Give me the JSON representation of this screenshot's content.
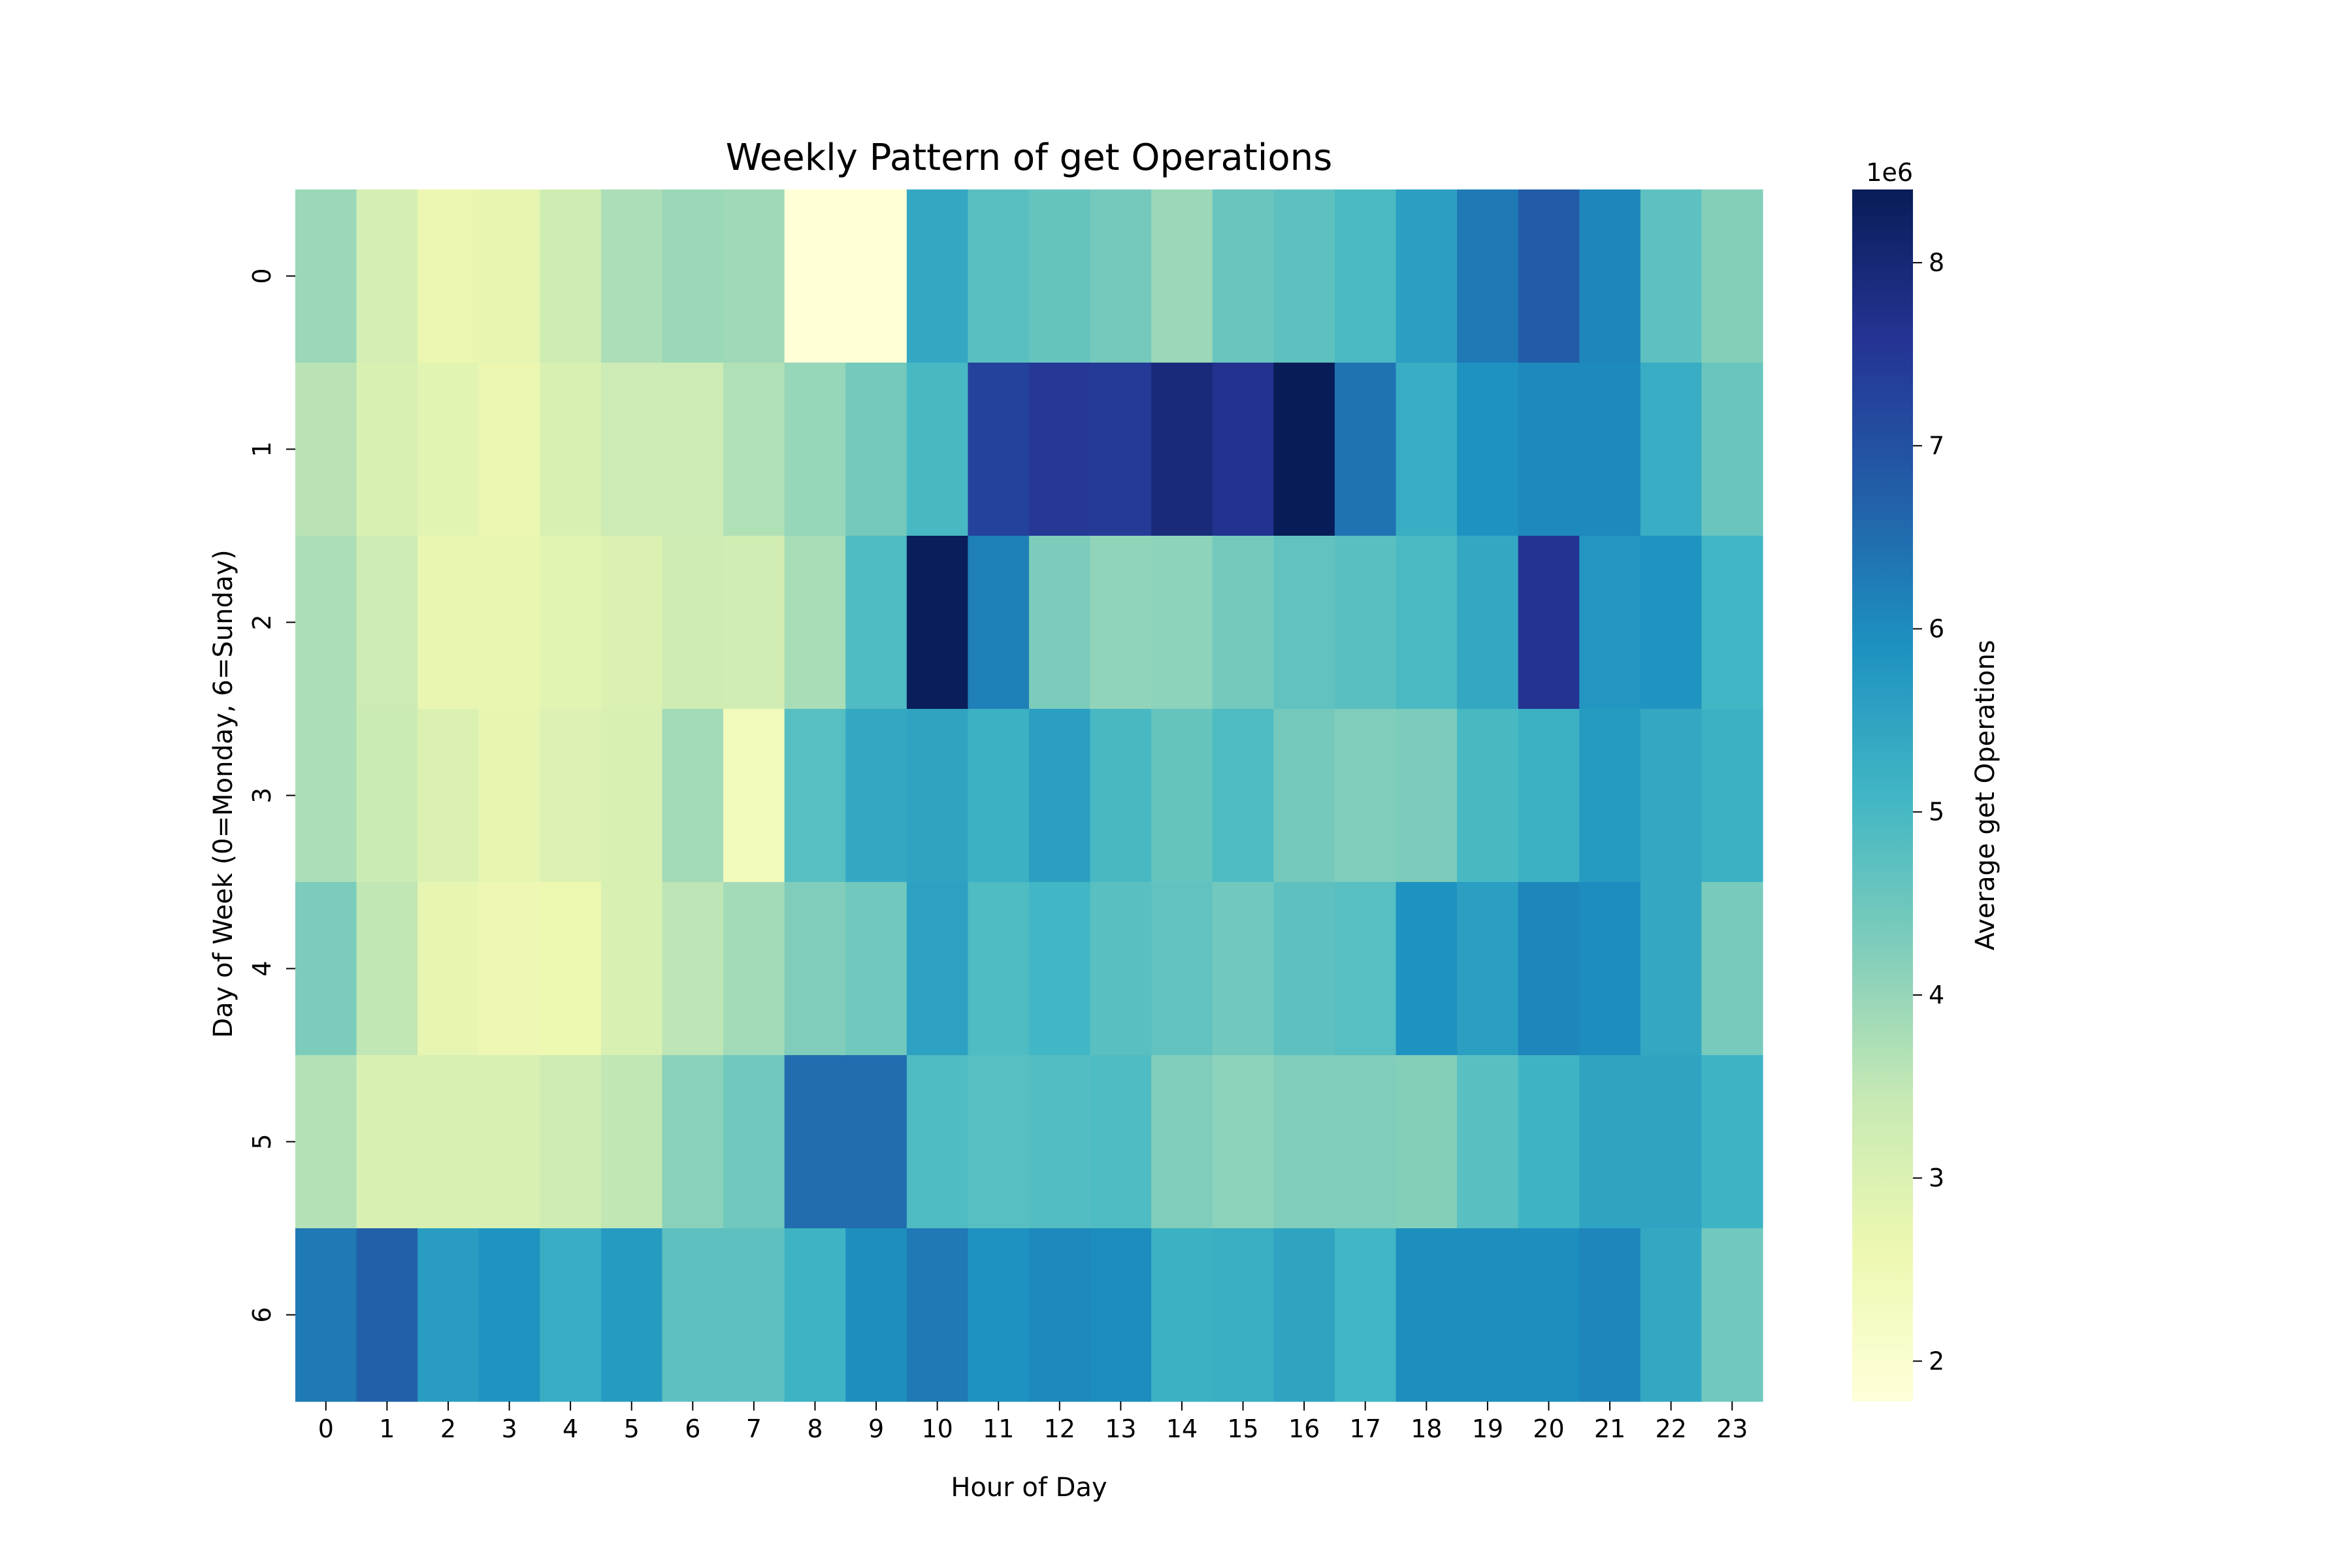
{
  "chart_data": {
    "type": "heatmap",
    "title": "Weekly Pattern of get Operations",
    "xlabel": "Hour of Day",
    "ylabel": "Day of Week (0=Monday, 6=Sunday)",
    "x_categories": [
      "0",
      "1",
      "2",
      "3",
      "4",
      "5",
      "6",
      "7",
      "8",
      "9",
      "10",
      "11",
      "12",
      "13",
      "14",
      "15",
      "16",
      "17",
      "18",
      "19",
      "20",
      "21",
      "22",
      "23"
    ],
    "y_categories": [
      "0",
      "1",
      "2",
      "3",
      "4",
      "5",
      "6"
    ],
    "values": [
      [
        3950000.0,
        3150000.0,
        2650000.0,
        2750000.0,
        3250000.0,
        3750000.0,
        3950000.0,
        3900000.0,
        1800000.0,
        1800000.0,
        5400000.0,
        4750000.0,
        4600000.0,
        4400000.0,
        3950000.0,
        4550000.0,
        4700000.0,
        4950000.0,
        5600000.0,
        6300000.0,
        6800000.0,
        6100000.0,
        4700000.0,
        4200000.0
      ],
      [
        3600000.0,
        3050000.0,
        2850000.0,
        2650000.0,
        3050000.0,
        3300000.0,
        3300000.0,
        3700000.0,
        4000000.0,
        4400000.0,
        5000000.0,
        7300000.0,
        7500000.0,
        7450000.0,
        7950000.0,
        7650000.0,
        8400000.0,
        6400000.0,
        5300000.0,
        5900000.0,
        6050000.0,
        6050000.0,
        5300000.0,
        4550000.0
      ],
      [
        3750000.0,
        3300000.0,
        2700000.0,
        2700000.0,
        2850000.0,
        3000000.0,
        3250000.0,
        3200000.0,
        3800000.0,
        4900000.0,
        8350000.0,
        6200000.0,
        4300000.0,
        4050000.0,
        4100000.0,
        4400000.0,
        4650000.0,
        4750000.0,
        4950000.0,
        5400000.0,
        7600000.0,
        5800000.0,
        5850000.0,
        5100000.0
      ],
      [
        3750000.0,
        3350000.0,
        3000000.0,
        2750000.0,
        2950000.0,
        3050000.0,
        3850000.0,
        2400000.0,
        4800000.0,
        5400000.0,
        5500000.0,
        5200000.0,
        5600000.0,
        5000000.0,
        4600000.0,
        4900000.0,
        4400000.0,
        4250000.0,
        4300000.0,
        5000000.0,
        5200000.0,
        5700000.0,
        5400000.0,
        5200000.0
      ],
      [
        4300000.0,
        3500000.0,
        2750000.0,
        2550000.0,
        2600000.0,
        3050000.0,
        3550000.0,
        3850000.0,
        4250000.0,
        4450000.0,
        5550000.0,
        4900000.0,
        5100000.0,
        4750000.0,
        4650000.0,
        4450000.0,
        4700000.0,
        4800000.0,
        5900000.0,
        5600000.0,
        6100000.0,
        6000000.0,
        5400000.0,
        4350000.0
      ],
      [
        3650000.0,
        3050000.0,
        3050000.0,
        3050000.0,
        3250000.0,
        3500000.0,
        4150000.0,
        4450000.0,
        6500000.0,
        6500000.0,
        4900000.0,
        4800000.0,
        4850000.0,
        4900000.0,
        4250000.0,
        4100000.0,
        4250000.0,
        4250000.0,
        4200000.0,
        4750000.0,
        5150000.0,
        5500000.0,
        5500000.0,
        5150000.0
      ],
      [
        6300000.0,
        6700000.0,
        5650000.0,
        5850000.0,
        5300000.0,
        5700000.0,
        4700000.0,
        4700000.0,
        5150000.0,
        5950000.0,
        6300000.0,
        5900000.0,
        6050000.0,
        6000000.0,
        5200000.0,
        5250000.0,
        5500000.0,
        5100000.0,
        5950000.0,
        5950000.0,
        5950000.0,
        6100000.0,
        5400000.0,
        4450000.0
      ]
    ],
    "colorbar": {
      "label": "Average get Operations",
      "scale_label": "1e6",
      "min": 1780000.0,
      "max": 8400000.0,
      "ticks": [
        2,
        3,
        4,
        5,
        6,
        7,
        8
      ],
      "colormap": "YlGnBu",
      "stops": [
        "#ffffd9",
        "#edf8b1",
        "#c7e9b4",
        "#7fcdbb",
        "#41b6c4",
        "#1d91c0",
        "#225ea8",
        "#253494",
        "#081d58"
      ]
    }
  }
}
